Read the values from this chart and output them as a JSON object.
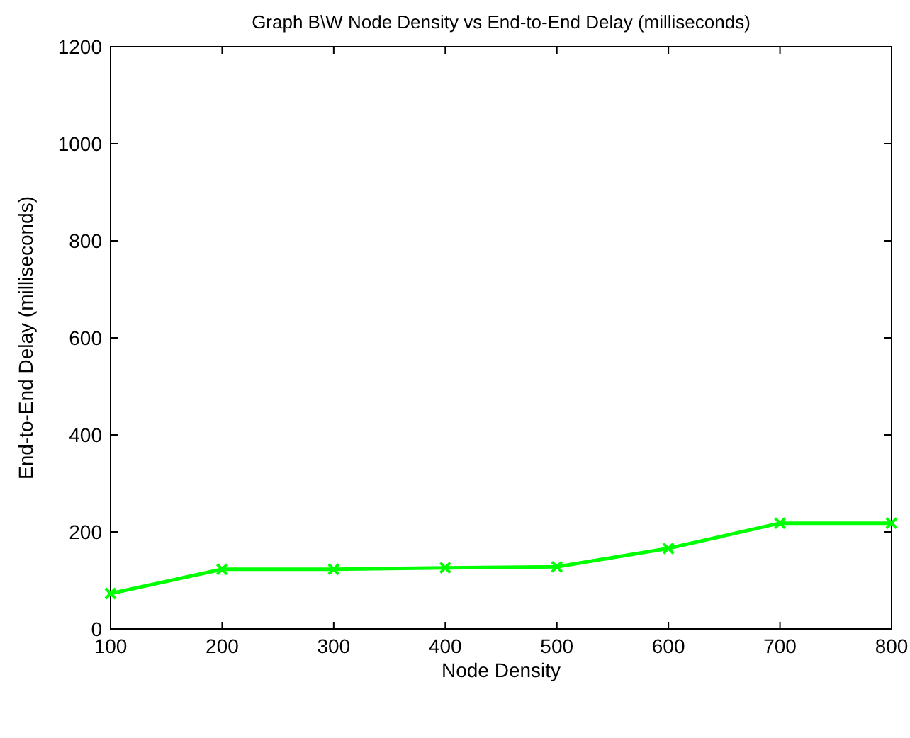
{
  "chart_data": {
    "type": "line",
    "title": "Graph B\\W Node Density vs End-to-End Delay (milliseconds)",
    "xlabel": "Node Density",
    "ylabel": "End-to-End Delay (milliseconds)",
    "x": [
      100,
      200,
      300,
      400,
      500,
      600,
      700,
      800
    ],
    "series": [
      {
        "color": "#00ff00",
        "values": [
          73,
          123,
          123,
          126,
          128,
          166,
          218,
          218
        ]
      }
    ],
    "xlim": [
      100,
      800
    ],
    "xticks": [
      100,
      200,
      300,
      400,
      500,
      600,
      700,
      800
    ],
    "ylim": [
      0,
      1200
    ],
    "yticks": [
      0,
      200,
      400,
      600,
      800,
      1000,
      1200
    ],
    "grid": false,
    "marker": "cross",
    "line_style": "solid"
  }
}
